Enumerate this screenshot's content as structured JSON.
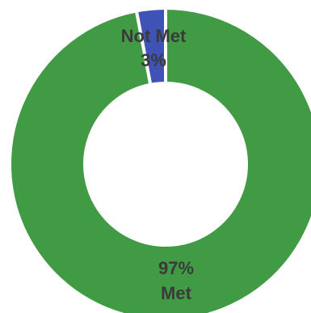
{
  "chart_data": {
    "type": "pie",
    "subtype": "donut",
    "title": "",
    "legend": "none",
    "slices": [
      {
        "label": "Not Met",
        "value": 3,
        "value_label": "3%",
        "color": "#3f52b5"
      },
      {
        "label": "Met",
        "value": 97,
        "value_label": "97%",
        "color": "#419b45"
      }
    ]
  }
}
